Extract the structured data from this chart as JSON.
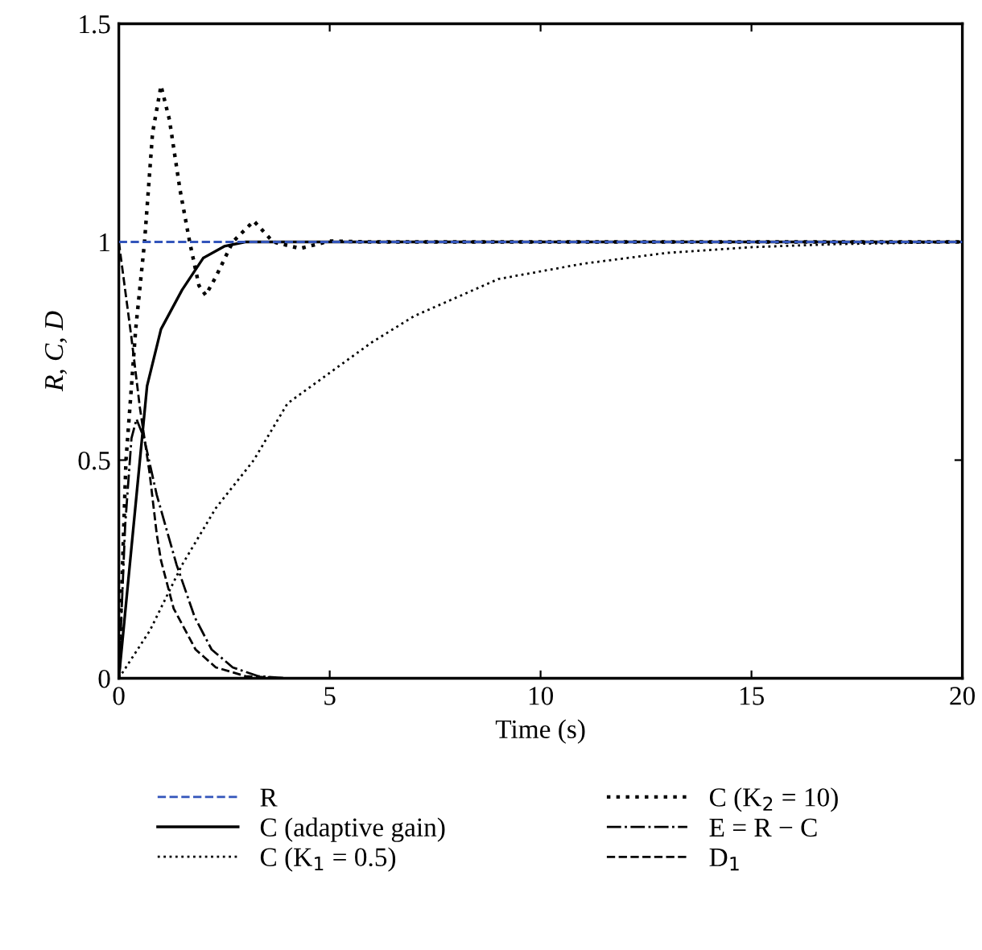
{
  "chart_data": {
    "type": "line",
    "xlabel": "Time (s)",
    "ylabel": "R, C, D",
    "xlim": [
      0,
      20
    ],
    "ylim": [
      0,
      1.5
    ],
    "xticks": [
      0,
      5,
      10,
      15,
      20
    ],
    "yticks": [
      0,
      0.5,
      1,
      1.5
    ],
    "grid": false,
    "legend": "bottom",
    "series": [
      {
        "name": "R",
        "color": "#3355bb",
        "line_style": "dashed",
        "x": [
          0,
          20
        ],
        "values": [
          1,
          1
        ]
      },
      {
        "name": "C (adaptive gain)",
        "color": "#000000",
        "line_style": "solid",
        "x": [
          0,
          0.3,
          0.5,
          0.67,
          1.0,
          1.5,
          2.0,
          2.5,
          3,
          4,
          20
        ],
        "values": [
          0,
          0.3,
          0.5,
          0.67,
          0.8,
          0.89,
          0.963,
          0.99,
          1,
          1,
          1
        ]
      },
      {
        "name": "C (K$_{1}$ = 0.5)",
        "color": "#000000",
        "line_style": "dotted",
        "x": [
          0,
          0.74,
          1.5,
          2.3,
          3.2,
          4,
          5,
          6,
          7,
          9,
          11,
          13,
          15,
          17,
          20
        ],
        "values": [
          0,
          0.11,
          0.26,
          0.39,
          0.5,
          0.63,
          0.7,
          0.77,
          0.83,
          0.915,
          0.95,
          0.975,
          0.988,
          0.995,
          1
        ]
      },
      {
        "name": "C (K$_{2}$ = 10)",
        "color": "#000000",
        "line_style": "dotted",
        "x": [
          0,
          0.17,
          0.4,
          0.61,
          0.8,
          1.0,
          1.2,
          1.45,
          1.68,
          1.9,
          2.06,
          2.3,
          2.7,
          3.2,
          3.66,
          4.3,
          5,
          6,
          20
        ],
        "values": [
          0,
          0.5,
          0.8,
          1.0,
          1.25,
          1.358,
          1.28,
          1.12,
          1.0,
          0.9,
          0.878,
          0.92,
          1.0,
          1.048,
          1.0,
          0.985,
          1.002,
          1,
          1
        ]
      },
      {
        "name": "E = R − C",
        "color": "#000000",
        "line_style": "dashdot",
        "x": [
          0,
          0.15,
          0.3,
          0.42,
          0.6,
          0.9,
          1.37,
          1.8,
          2.2,
          2.7,
          3.3,
          4,
          9
        ],
        "values": [
          0,
          0.35,
          0.55,
          0.594,
          0.55,
          0.42,
          0.26,
          0.14,
          0.066,
          0.025,
          0.005,
          0,
          0
        ]
      },
      {
        "name": "D$_{1}$",
        "color": "#000000",
        "line_style": "dashed",
        "x": [
          0,
          0.3,
          0.5,
          0.73,
          0.9,
          1.0,
          1.3,
          1.82,
          2.3,
          3,
          4,
          9
        ],
        "values": [
          1,
          0.78,
          0.62,
          0.47,
          0.33,
          0.27,
          0.16,
          0.066,
          0.025,
          0.005,
          0,
          0
        ]
      }
    ]
  }
}
